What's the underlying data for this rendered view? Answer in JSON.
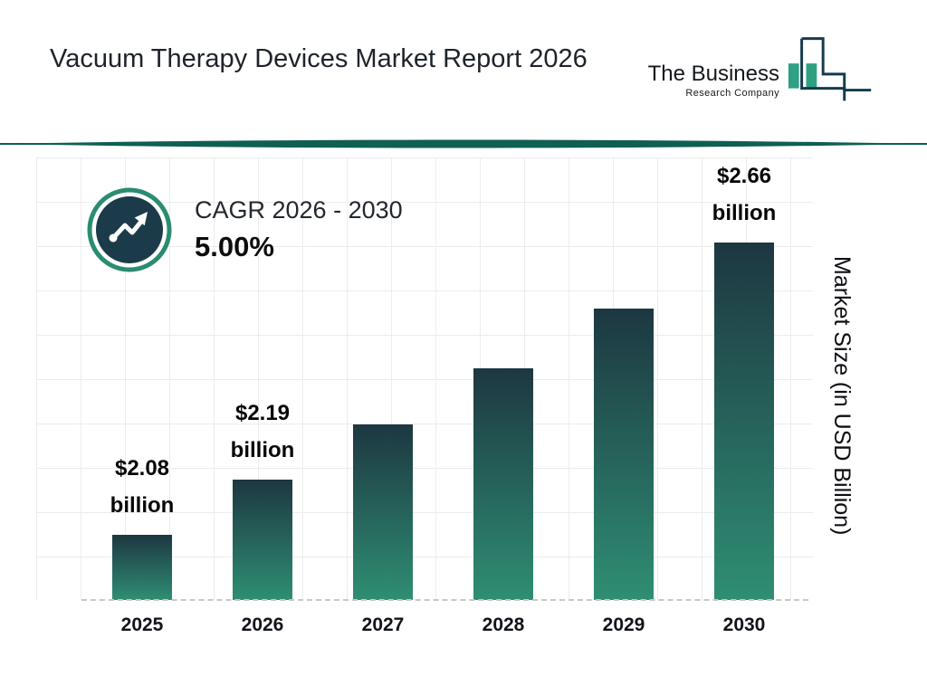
{
  "header": {
    "title": "Vacuum Therapy Devices Market Report 2026",
    "logo": {
      "line1": "The Business",
      "line2": "Research Company"
    }
  },
  "cagr": {
    "label": "CAGR 2026 - 2030",
    "value": "5.00%"
  },
  "chart_data": {
    "type": "bar",
    "categories": [
      "2025",
      "2026",
      "2027",
      "2028",
      "2029",
      "2030"
    ],
    "values": [
      2.08,
      2.19,
      2.3,
      2.41,
      2.53,
      2.66
    ],
    "bar_labels": [
      {
        "value": "$2.08",
        "unit": "billion"
      },
      {
        "value": "$2.19",
        "unit": "billion"
      },
      null,
      null,
      null,
      {
        "value": "$2.66",
        "unit": "billion"
      }
    ],
    "ylabel": "Market Size (in USD Billion)",
    "ylim": [
      1.95,
      2.83
    ],
    "grid": true,
    "legend": "none"
  },
  "colors": {
    "divider": "#0f5f53",
    "bar-top": "#1d3741",
    "bar-bottom": "#2f8e73",
    "ring": "#2a8c70",
    "circle": "#1c3b4a",
    "navy": "#123c4d",
    "teal": "#2fa083"
  }
}
